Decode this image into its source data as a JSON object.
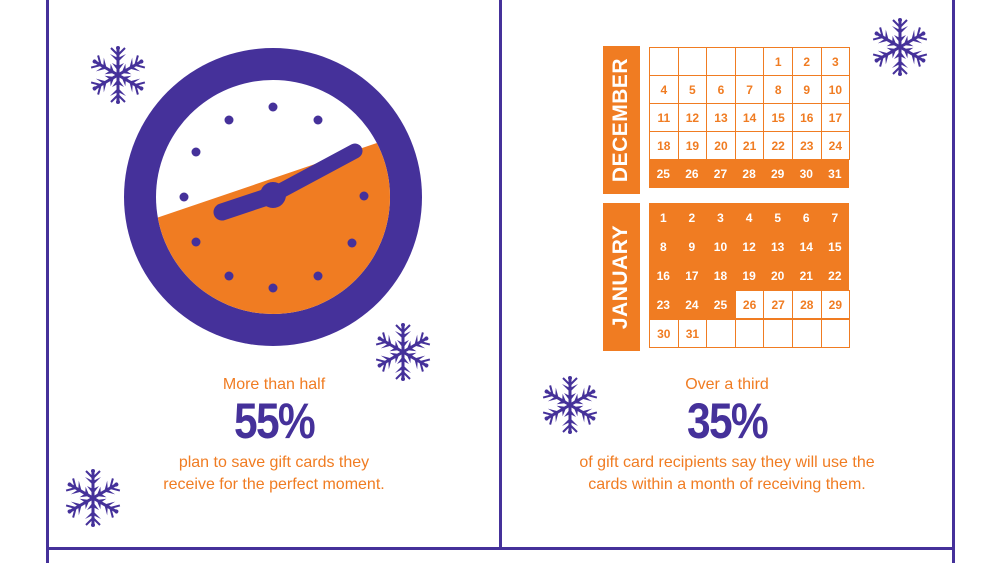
{
  "colors": {
    "purple": "#45319a",
    "orange": "#f07c22",
    "white": "#ffffff"
  },
  "left_panel": {
    "graphic": "clock-icon",
    "kicker": "More than half",
    "stat": "55%",
    "description_line1": "plan to save gift cards they",
    "description_line2": "receive for the perfect moment."
  },
  "right_panel": {
    "graphic": "calendar-icon",
    "kicker": "Over a third",
    "stat": "35%",
    "description_line1": "of gift card recipients say they will use the",
    "description_line2": "cards within a month of receiving them."
  },
  "calendar": {
    "december": {
      "label": "DECEMBER",
      "rows": [
        [
          "",
          "",
          "",
          "",
          "1",
          "2",
          "3"
        ],
        [
          "4",
          "5",
          "6",
          "7",
          "8",
          "9",
          "10"
        ],
        [
          "11",
          "12",
          "13",
          "14",
          "15",
          "16",
          "17"
        ],
        [
          "18",
          "19",
          "20",
          "21",
          "22",
          "23",
          "24"
        ],
        [
          "25",
          "26",
          "27",
          "28",
          "29",
          "30",
          "31"
        ]
      ],
      "highlighted_rows": [
        4
      ]
    },
    "january": {
      "label": "JANUARY",
      "rows": [
        [
          "1",
          "2",
          "3",
          "4",
          "5",
          "6",
          "7"
        ],
        [
          "8",
          "9",
          "10",
          "12",
          "13",
          "14",
          "15"
        ],
        [
          "16",
          "17",
          "18",
          "19",
          "20",
          "21",
          "22"
        ],
        [
          "23",
          "24",
          "25",
          "26",
          "27",
          "28",
          "29"
        ],
        [
          "30",
          "31",
          "",
          "",
          "",
          "",
          ""
        ]
      ],
      "highlighted_through": "25"
    }
  },
  "decorations": [
    "snowflake-icon",
    "snowflake-icon",
    "snowflake-icon",
    "snowflake-icon",
    "snowflake-icon"
  ]
}
